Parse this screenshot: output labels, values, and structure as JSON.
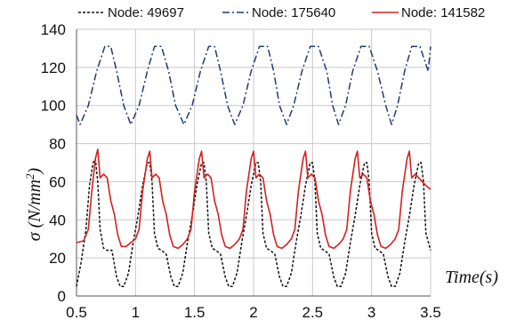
{
  "chart_data": {
    "type": "line",
    "xlabel": "Time(s)",
    "ylabel_main": "σ (N/mm",
    "ylabel_sup": "2",
    "ylabel_end": ")",
    "xlim": [
      0.5,
      3.5
    ],
    "ylim": [
      0,
      140
    ],
    "x_ticks": [
      0.5,
      1,
      1.5,
      2,
      2.5,
      3,
      3.5
    ],
    "x_tick_labels": [
      "0.5",
      "1",
      "1.5",
      "2",
      "2.5",
      "3",
      "3.5"
    ],
    "y_ticks": [
      0,
      20,
      40,
      60,
      80,
      100,
      120,
      140
    ],
    "y_tick_labels": [
      "0",
      "20",
      "40",
      "60",
      "80",
      "100",
      "120",
      "140"
    ],
    "grid": true,
    "legend_position": "top",
    "series": [
      {
        "name": "Node: 49697",
        "color": "#111111",
        "style": "dashed",
        "x": [
          0.5,
          0.54,
          0.58,
          0.61,
          0.64,
          0.66,
          0.68,
          0.7,
          0.73,
          0.76,
          0.8,
          0.84,
          0.87,
          0.9,
          0.94,
          0.98,
          1.02,
          1.06,
          1.1,
          1.12,
          1.14,
          1.16,
          1.19,
          1.22,
          1.26,
          1.3,
          1.33,
          1.36,
          1.4,
          1.44,
          1.48,
          1.52,
          1.56,
          1.58,
          1.6,
          1.62,
          1.65,
          1.68,
          1.72,
          1.76,
          1.79,
          1.82,
          1.86,
          1.9,
          1.94,
          1.98,
          2.02,
          2.04,
          2.06,
          2.08,
          2.11,
          2.14,
          2.18,
          2.22,
          2.25,
          2.28,
          2.32,
          2.36,
          2.4,
          2.44,
          2.48,
          2.5,
          2.52,
          2.54,
          2.57,
          2.6,
          2.64,
          2.68,
          2.71,
          2.74,
          2.78,
          2.82,
          2.86,
          2.9,
          2.94,
          2.96,
          2.98,
          3.0,
          3.03,
          3.06,
          3.1,
          3.14,
          3.17,
          3.2,
          3.24,
          3.28,
          3.32,
          3.36,
          3.4,
          3.42,
          3.44,
          3.46,
          3.5
        ],
        "y": [
          5,
          18,
          35,
          58,
          70,
          72,
          60,
          35,
          25,
          24,
          24,
          10,
          5,
          5,
          12,
          28,
          42,
          58,
          70,
          70,
          60,
          33,
          25,
          24,
          22,
          10,
          5,
          5,
          12,
          28,
          42,
          58,
          70,
          70,
          60,
          33,
          25,
          24,
          22,
          10,
          5,
          5,
          12,
          28,
          42,
          58,
          70,
          70,
          60,
          33,
          25,
          24,
          22,
          10,
          5,
          5,
          12,
          28,
          42,
          58,
          70,
          70,
          60,
          33,
          25,
          24,
          22,
          10,
          5,
          5,
          12,
          28,
          42,
          58,
          70,
          70,
          60,
          33,
          25,
          24,
          22,
          10,
          5,
          5,
          12,
          28,
          42,
          58,
          70,
          70,
          60,
          33,
          24
        ]
      },
      {
        "name": "Node: 175640",
        "color": "#1f3b73",
        "style": "dashdot",
        "x": [
          0.5,
          0.53,
          0.6,
          0.67,
          0.74,
          0.79,
          0.84,
          0.9,
          0.96,
          1.03,
          1.1,
          1.16,
          1.22,
          1.28,
          1.34,
          1.41,
          1.48,
          1.55,
          1.62,
          1.67,
          1.72,
          1.78,
          1.84,
          1.91,
          1.98,
          2.05,
          2.12,
          2.17,
          2.22,
          2.28,
          2.34,
          2.41,
          2.48,
          2.55,
          2.62,
          2.67,
          2.72,
          2.78,
          2.84,
          2.91,
          2.98,
          3.05,
          3.12,
          3.17,
          3.22,
          3.28,
          3.34,
          3.41,
          3.48,
          3.5
        ],
        "y": [
          95,
          90,
          100,
          118,
          131,
          131,
          118,
          100,
          90,
          100,
          118,
          131,
          131,
          118,
          100,
          90,
          100,
          118,
          131,
          131,
          118,
          100,
          90,
          100,
          118,
          131,
          131,
          118,
          100,
          90,
          100,
          118,
          131,
          131,
          118,
          100,
          90,
          100,
          118,
          131,
          131,
          118,
          100,
          90,
          100,
          118,
          131,
          131,
          118,
          131
        ]
      },
      {
        "name": "Node: 141582",
        "color": "#d42020",
        "style": "solid",
        "x": [
          0.5,
          0.56,
          0.6,
          0.63,
          0.66,
          0.68,
          0.7,
          0.73,
          0.76,
          0.79,
          0.82,
          0.85,
          0.88,
          0.92,
          0.96,
          1.0,
          1.03,
          1.06,
          1.1,
          1.12,
          1.14,
          1.17,
          1.2,
          1.23,
          1.26,
          1.29,
          1.32,
          1.36,
          1.4,
          1.44,
          1.47,
          1.5,
          1.54,
          1.56,
          1.58,
          1.61,
          1.64,
          1.67,
          1.7,
          1.73,
          1.76,
          1.8,
          1.84,
          1.88,
          1.91,
          1.94,
          1.98,
          2.0,
          2.02,
          2.05,
          2.08,
          2.11,
          2.14,
          2.17,
          2.2,
          2.24,
          2.28,
          2.32,
          2.35,
          2.38,
          2.42,
          2.44,
          2.46,
          2.49,
          2.52,
          2.55,
          2.58,
          2.61,
          2.64,
          2.68,
          2.72,
          2.76,
          2.79,
          2.82,
          2.86,
          2.88,
          2.9,
          2.93,
          2.96,
          2.99,
          3.02,
          3.05,
          3.08,
          3.12,
          3.16,
          3.2,
          3.23,
          3.26,
          3.3,
          3.32,
          3.34,
          3.37,
          3.4,
          3.43,
          3.46,
          3.5
        ],
        "y": [
          28,
          29,
          35,
          55,
          72,
          77,
          62,
          64,
          62,
          50,
          43,
          32,
          26,
          26,
          28,
          30,
          35,
          55,
          72,
          76,
          62,
          64,
          62,
          50,
          43,
          32,
          26,
          25,
          27,
          30,
          35,
          55,
          72,
          76,
          62,
          64,
          62,
          50,
          43,
          32,
          26,
          25,
          27,
          30,
          35,
          55,
          72,
          76,
          62,
          64,
          62,
          50,
          43,
          32,
          26,
          25,
          27,
          30,
          35,
          55,
          72,
          76,
          62,
          64,
          62,
          50,
          43,
          32,
          26,
          25,
          27,
          30,
          35,
          55,
          72,
          76,
          62,
          64,
          62,
          50,
          43,
          32,
          26,
          25,
          27,
          30,
          35,
          55,
          72,
          76,
          62,
          64,
          62,
          60,
          58,
          56
        ]
      }
    ]
  }
}
